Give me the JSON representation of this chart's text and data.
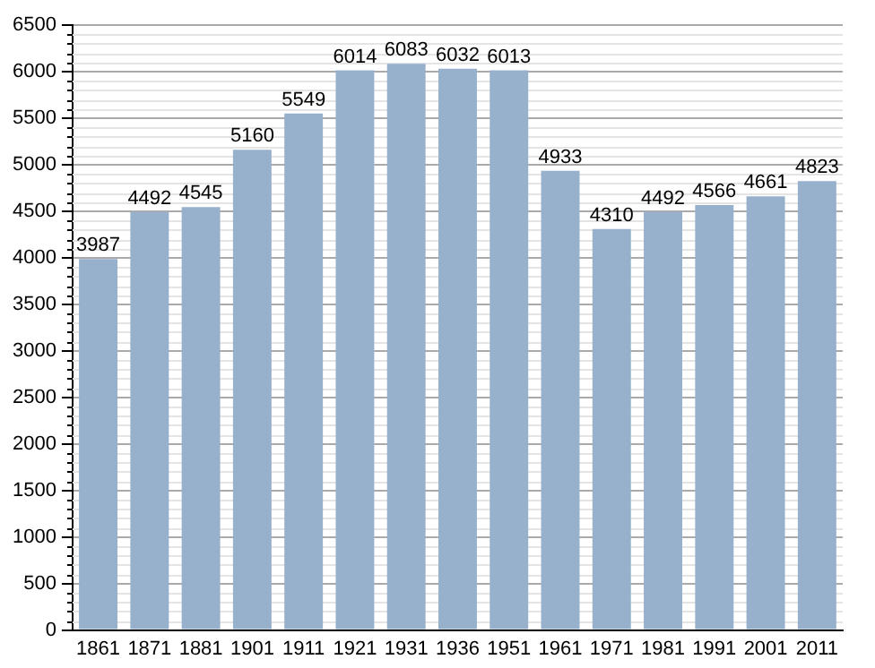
{
  "chart_data": {
    "type": "bar",
    "categories": [
      "1861",
      "1871",
      "1881",
      "1901",
      "1911",
      "1921",
      "1931",
      "1936",
      "1951",
      "1961",
      "1971",
      "1981",
      "1991",
      "2001",
      "2011"
    ],
    "values": [
      3987,
      4492,
      4545,
      5160,
      5549,
      6014,
      6083,
      6032,
      6013,
      4933,
      4310,
      4492,
      4566,
      4661,
      4823
    ],
    "color": "#97b1cc",
    "ylim": [
      0,
      6500
    ],
    "yticks": [
      0,
      500,
      1000,
      1500,
      2000,
      2500,
      3000,
      3500,
      4000,
      4500,
      5000,
      5500,
      6000,
      6500
    ],
    "grid": "y",
    "data_labels": true,
    "legend": false
  }
}
